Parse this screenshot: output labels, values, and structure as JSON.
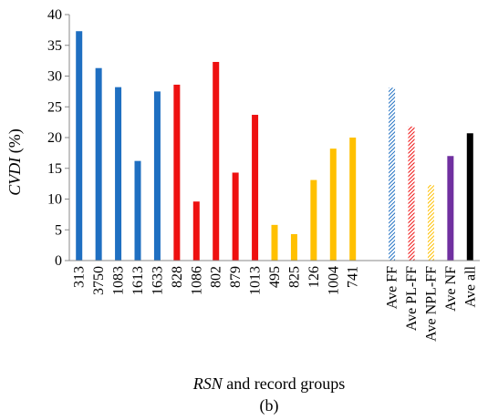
{
  "chart_data": {
    "type": "bar",
    "xlabel_italic": "RSN",
    "xlabel_rest": " and record groups",
    "ylabel_italic": "CVDI",
    "ylabel_rest": " (%)",
    "caption": "(b)",
    "ylim": [
      0,
      40
    ],
    "yticks": [
      0,
      5,
      10,
      15,
      20,
      25,
      30,
      35,
      40
    ],
    "grid": false,
    "bars": [
      {
        "label": "313",
        "value": 37.3,
        "color": "#1f6fc1",
        "pattern": "solid"
      },
      {
        "label": "3750",
        "value": 31.3,
        "color": "#1f6fc1",
        "pattern": "solid"
      },
      {
        "label": "1083",
        "value": 28.2,
        "color": "#1f6fc1",
        "pattern": "solid"
      },
      {
        "label": "1613",
        "value": 16.2,
        "color": "#1f6fc1",
        "pattern": "solid"
      },
      {
        "label": "1633",
        "value": 27.5,
        "color": "#1f6fc1",
        "pattern": "solid"
      },
      {
        "label": "828",
        "value": 28.6,
        "color": "#ee1111",
        "pattern": "solid"
      },
      {
        "label": "1086",
        "value": 9.6,
        "color": "#ee1111",
        "pattern": "solid"
      },
      {
        "label": "802",
        "value": 32.3,
        "color": "#ee1111",
        "pattern": "solid"
      },
      {
        "label": "879",
        "value": 14.3,
        "color": "#ee1111",
        "pattern": "solid"
      },
      {
        "label": "1013",
        "value": 23.7,
        "color": "#ee1111",
        "pattern": "solid"
      },
      {
        "label": "495",
        "value": 5.8,
        "color": "#ffc000",
        "pattern": "solid"
      },
      {
        "label": "825",
        "value": 4.3,
        "color": "#ffc000",
        "pattern": "solid"
      },
      {
        "label": "126",
        "value": 13.1,
        "color": "#ffc000",
        "pattern": "solid"
      },
      {
        "label": "1004",
        "value": 18.2,
        "color": "#ffc000",
        "pattern": "solid"
      },
      {
        "label": "741",
        "value": 20.0,
        "color": "#ffc000",
        "pattern": "solid"
      },
      {
        "label": "",
        "value": null,
        "color": "",
        "pattern": "gap"
      },
      {
        "label": "Ave FF",
        "value": 28.1,
        "color": "#1f6fc1",
        "pattern": "hatch"
      },
      {
        "label": "Ave PL-FF",
        "value": 21.8,
        "color": "#ee1111",
        "pattern": "hatch"
      },
      {
        "label": "Ave NPL-FF",
        "value": 12.3,
        "color": "#ffc000",
        "pattern": "hatch"
      },
      {
        "label": "Ave NF",
        "value": 17.0,
        "color": "#7030a0",
        "pattern": "solid"
      },
      {
        "label": "Ave all",
        "value": 20.7,
        "color": "#000000",
        "pattern": "solid"
      }
    ]
  }
}
